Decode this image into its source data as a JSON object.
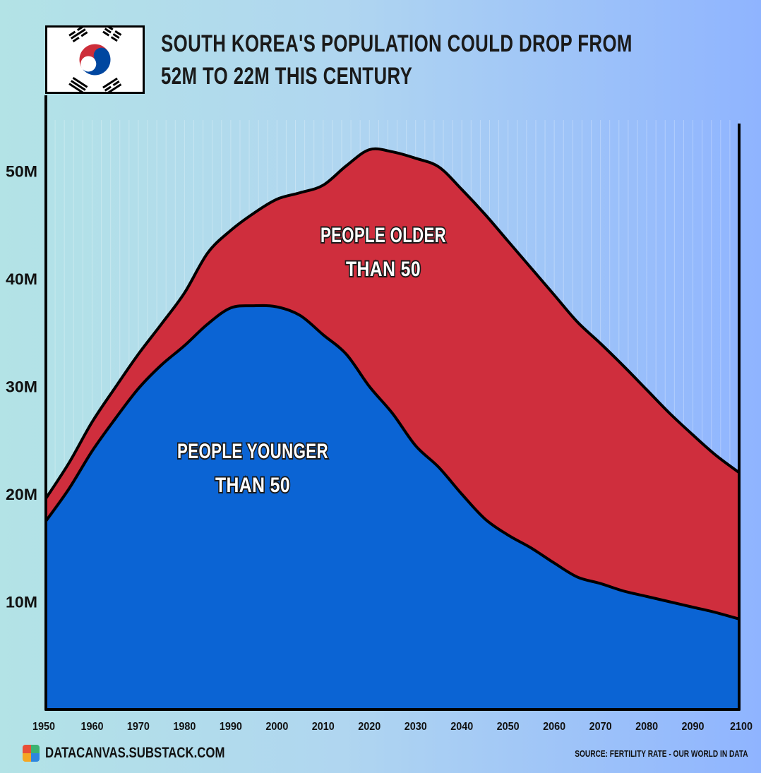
{
  "header": {
    "title_line1": "SOUTH KOREA'S POPULATION COULD DROP FROM",
    "title_line2": "52M TO 22M THIS CENTURY",
    "flag_icon": "south-korea-flag-icon"
  },
  "colors": {
    "younger": "#0b64d4",
    "older": "#cf2e3d",
    "outline": "#000000"
  },
  "chart_data": {
    "type": "area",
    "stacked": true,
    "x": [
      1950,
      1955,
      1960,
      1965,
      1970,
      1975,
      1980,
      1985,
      1990,
      1995,
      2000,
      2005,
      2010,
      2015,
      2020,
      2025,
      2030,
      2035,
      2040,
      2045,
      2050,
      2055,
      2060,
      2065,
      2070,
      2075,
      2080,
      2085,
      2090,
      2095,
      2100
    ],
    "series": [
      {
        "name": "PEOPLE YOUNGER THAN 50",
        "values": [
          17.5,
          20.5,
          24.0,
          27.0,
          29.8,
          32.0,
          33.8,
          35.8,
          37.3,
          37.5,
          37.4,
          36.6,
          34.8,
          33.0,
          30.0,
          27.5,
          24.5,
          22.5,
          20.0,
          17.7,
          16.2,
          15.0,
          13.6,
          12.3,
          11.7,
          11.0,
          10.5,
          10.0,
          9.5,
          9.0,
          8.4
        ],
        "color": "#0b64d4"
      },
      {
        "name": "PEOPLE OLDER THAN 50",
        "values": [
          2.1,
          2.4,
          2.7,
          2.9,
          3.2,
          3.8,
          4.9,
          6.6,
          7.2,
          8.6,
          10.0,
          11.4,
          13.9,
          17.5,
          22.0,
          24.3,
          26.7,
          27.9,
          28.3,
          28.3,
          27.3,
          26.0,
          24.9,
          23.7,
          22.3,
          20.9,
          19.2,
          17.5,
          16.0,
          14.6,
          13.6
        ]
      }
    ],
    "y_ticks": [
      "10M",
      "20M",
      "30M",
      "40M",
      "50M"
    ],
    "y_tick_values": [
      10,
      20,
      30,
      40,
      50
    ],
    "x_ticks": [
      "1950",
      "1960",
      "1970",
      "1980",
      "1990",
      "2000",
      "2010",
      "2020",
      "2030",
      "2040",
      "2050",
      "2060",
      "2070",
      "2080",
      "2090",
      "2100"
    ],
    "xlim": [
      1950,
      2100
    ],
    "ylim": [
      0,
      54
    ],
    "grid": "vertical",
    "legend": "inline labels",
    "labels": {
      "older_line1": "PEOPLE OLDER",
      "older_line2": "THAN 50",
      "younger_line1": "PEOPLE YOUNGER",
      "younger_line2": "THAN 50"
    }
  },
  "footer": {
    "site": "DATACANVAS.SUBSTACK.COM",
    "source": "SOURCE: FERTILITY RATE - OUR WORLD IN DATA",
    "logo_icon": "datacanvas-logo-icon",
    "logo_colors": [
      "#e94f37",
      "#3cb371",
      "#f5a623",
      "#2e86de"
    ]
  }
}
